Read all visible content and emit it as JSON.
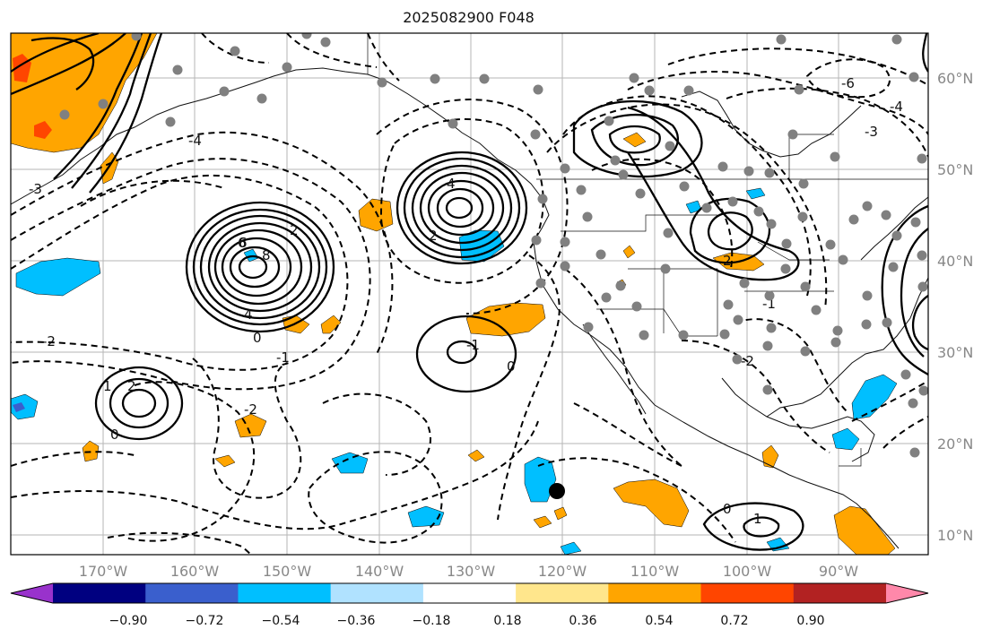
{
  "title": "2025082900 F048",
  "lon_labels": [
    "170°W",
    "160°W",
    "150°W",
    "140°W",
    "130°W",
    "120°W",
    "110°W",
    "100°W",
    "90°W"
  ],
  "lat_labels": [
    "60°N",
    "50°N",
    "40°N",
    "30°N",
    "20°N",
    "10°N"
  ],
  "colorbar": {
    "ticks": [
      "−0.90",
      "−0.72",
      "−0.54",
      "−0.36",
      "−0.18",
      "0.18",
      "0.36",
      "0.54",
      "0.72",
      "0.90"
    ],
    "colors": [
      "#9932cc",
      "#000080",
      "#3a5fcd",
      "#00bfff",
      "#b0e2ff",
      "#ffffff",
      "#ffe68c",
      "#ffa500",
      "#ff4500",
      "#b22222",
      "#ff88aa"
    ]
  },
  "contour_labels": [
    "6",
    "8",
    "4",
    "2",
    "0",
    "-2",
    "-1",
    "-3",
    "-4",
    "6",
    "4",
    "2",
    "0",
    "-1",
    "2",
    "1",
    "0",
    "-2",
    "-3",
    "-6",
    "-4",
    "2",
    "0",
    "1",
    "-2",
    "-1"
  ],
  "colors": {
    "positive_fill": "#ffa500",
    "negative_fill": "#00bfff",
    "station": "#808080"
  }
}
